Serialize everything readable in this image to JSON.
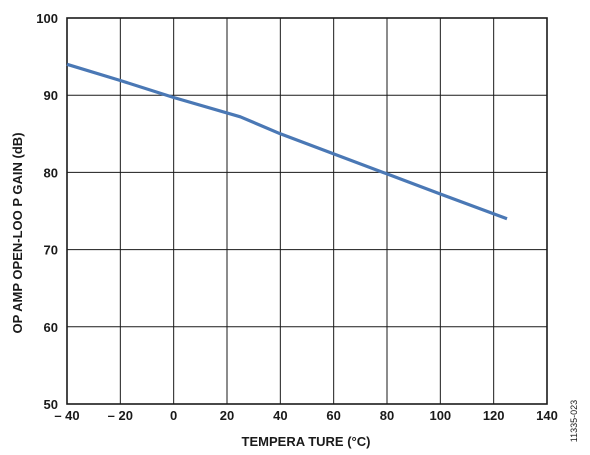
{
  "chart_data": {
    "type": "line",
    "xlabel": "TEMPERA  TURE (°C)",
    "ylabel": "OP AMP OPEN-LOO  P GAIN (dB)",
    "xlim": [
      -40,
      140
    ],
    "ylim": [
      50,
      100
    ],
    "xticks": [
      -40,
      -20,
      0,
      20,
      40,
      60,
      80,
      100,
      120,
      140
    ],
    "xtick_labels": [
      "– 40",
      "– 20",
      "0",
      "20",
      "40",
      "60",
      "80",
      "100",
      "120",
      "140"
    ],
    "yticks": [
      50,
      60,
      70,
      80,
      90,
      100
    ],
    "ytick_labels": [
      "50",
      "60",
      "70",
      "80",
      "90",
      "100"
    ],
    "grid": true,
    "series": [
      {
        "color": "#4a78b5",
        "x": [
          -40,
          -20,
          0,
          25,
          40,
          60,
          80,
          100,
          125
        ],
        "y": [
          94.0,
          91.9,
          89.7,
          87.2,
          85.0,
          82.4,
          79.8,
          77.2,
          74.0
        ]
      }
    ],
    "figure_id": "11335-023"
  }
}
